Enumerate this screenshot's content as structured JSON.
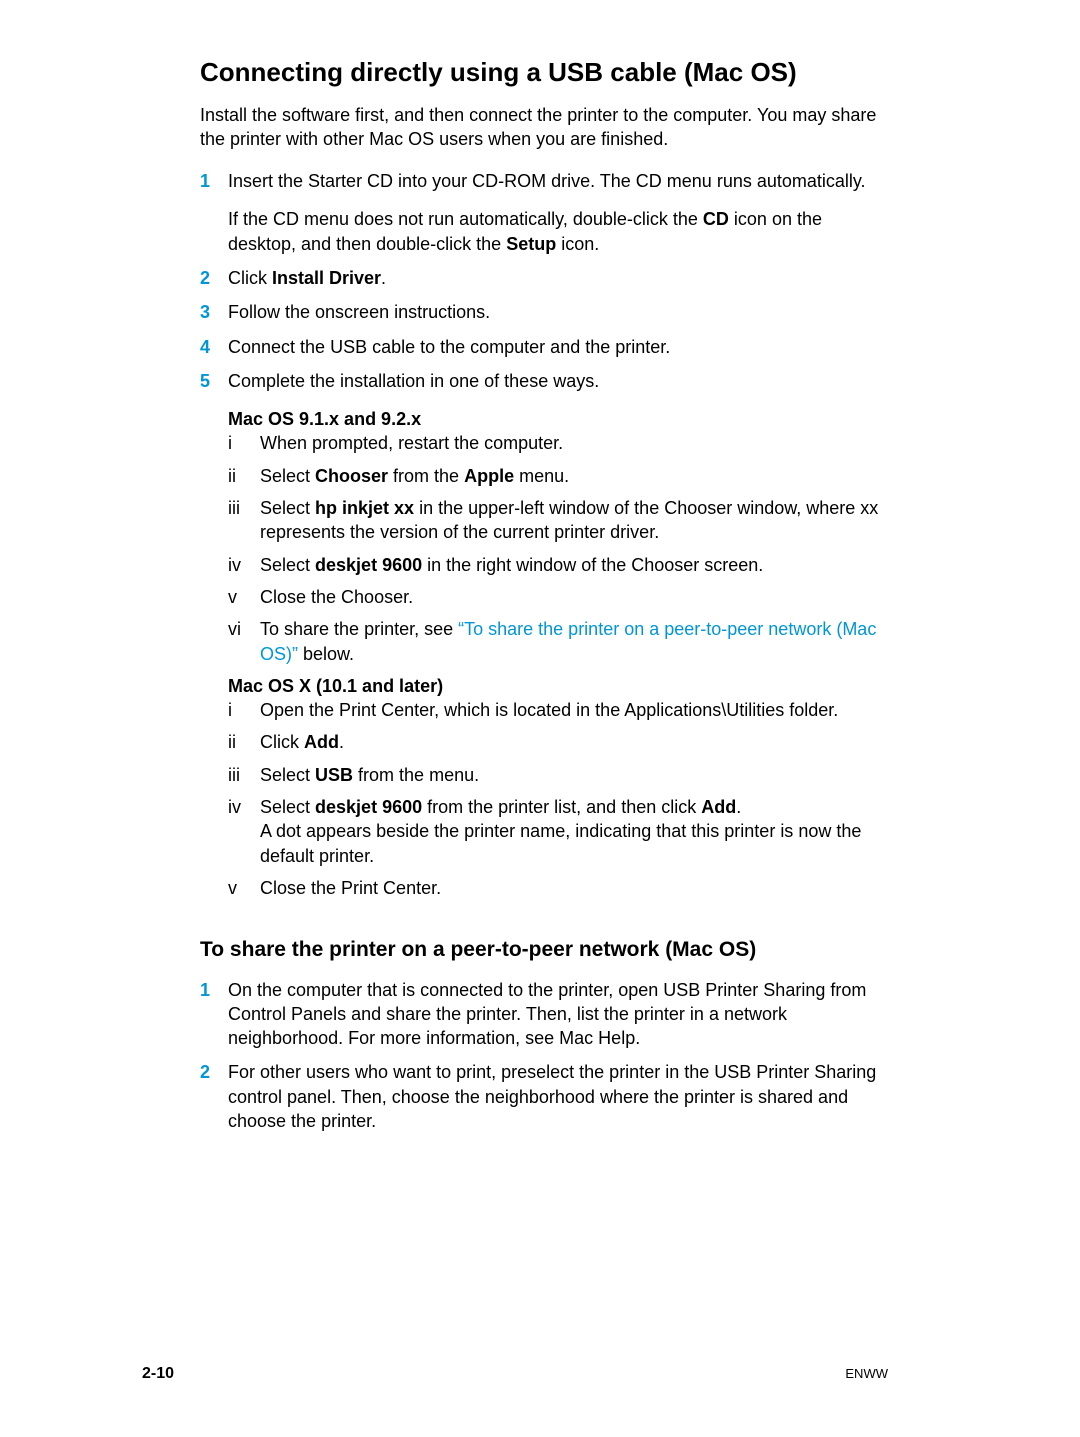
{
  "colors": {
    "accent": "#0096d6",
    "text": "#000000",
    "background": "#ffffff"
  },
  "heading1": "Connecting directly using a USB cable (Mac OS)",
  "intro": "Install the software first, and then connect the printer to the computer. You may share the printer with other Mac OS users when you are finished.",
  "steps": {
    "s1": {
      "num": "1",
      "p1": "Insert the Starter CD into your CD-ROM drive. The CD menu runs automatically.",
      "p2_a": "If the CD menu does not run automatically, double-click the ",
      "p2_cd": "CD",
      "p2_b": " icon on the desktop, and then double-click the ",
      "p2_setup": "Setup",
      "p2_c": " icon."
    },
    "s2": {
      "num": "2",
      "a": "Click ",
      "b": "Install Driver",
      "c": "."
    },
    "s3": {
      "num": "3",
      "text": "Follow the onscreen instructions."
    },
    "s4": {
      "num": "4",
      "text": "Connect the USB cable to the computer and the printer."
    },
    "s5": {
      "num": "5",
      "text": "Complete the installation in one of these ways.",
      "mac9_heading": "Mac OS 9.1.x and 9.2.x",
      "mac9": {
        "i": {
          "r": "i",
          "text": "When prompted, restart the computer."
        },
        "ii": {
          "r": "ii",
          "a": "Select ",
          "b": "Chooser",
          "c": " from the ",
          "d": "Apple",
          "e": " menu."
        },
        "iii": {
          "r": "iii",
          "a": "Select ",
          "b": "hp inkjet xx",
          "c": " in the upper-left window of the Chooser window, where xx represents the version of the current printer driver."
        },
        "iv": {
          "r": "iv",
          "a": "Select ",
          "b": "deskjet 9600",
          "c": " in the right window of the Chooser screen."
        },
        "v": {
          "r": "v",
          "text": "Close the Chooser."
        },
        "vi": {
          "r": "vi",
          "a": "To share the printer, see ",
          "link": "“To share the printer on a peer-to-peer network (Mac OS)”",
          "b": " below."
        }
      },
      "macx_heading": "Mac OS X (10.1 and later)",
      "macx": {
        "i": {
          "r": "i",
          "text": "Open the Print Center, which is located in the Applications\\Utilities folder."
        },
        "ii": {
          "r": "ii",
          "a": "Click ",
          "b": "Add",
          "c": "."
        },
        "iii": {
          "r": "iii",
          "a": "Select ",
          "b": "USB",
          "c": " from the menu."
        },
        "iv": {
          "r": "iv",
          "a": "Select ",
          "b": "deskjet 9600",
          "c": " from the printer list, and then click ",
          "d": "Add",
          "e": ".",
          "line2": "A dot appears beside the printer name, indicating that this printer is now the default printer."
        },
        "v": {
          "r": "v",
          "text": "Close the Print Center."
        }
      }
    }
  },
  "heading2": "To share the printer on a peer-to-peer network (Mac OS)",
  "share_steps": {
    "s1": {
      "num": "1",
      "text": "On the computer that is connected to the printer, open USB Printer Sharing from Control Panels and share the printer. Then, list the printer in a network neighborhood. For more information, see Mac Help."
    },
    "s2": {
      "num": "2",
      "text": "For other users who want to print, preselect the printer in the USB Printer Sharing control panel. Then, choose the neighborhood where the printer is shared and choose the printer."
    }
  },
  "footer": {
    "page": "2-10",
    "brand": "ENWW"
  }
}
